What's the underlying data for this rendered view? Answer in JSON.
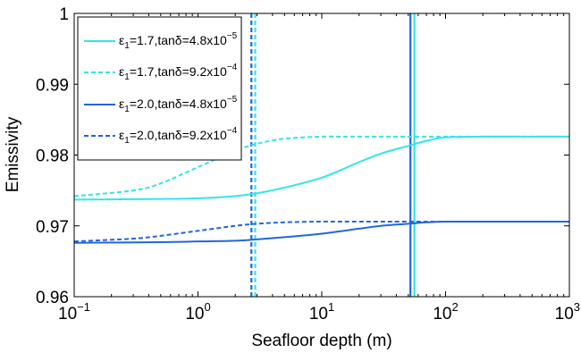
{
  "chart_data": {
    "type": "line",
    "xlabel": "Seafloor depth (m)",
    "ylabel": "Emissivity",
    "xscale": "log",
    "xlim": [
      0.1,
      1000
    ],
    "ylim": [
      0.96,
      1.0
    ],
    "x_ticks": [
      {
        "value": 0.1,
        "base": "10",
        "exp": "−1"
      },
      {
        "value": 1,
        "base": "10",
        "exp": "0"
      },
      {
        "value": 10,
        "base": "10",
        "exp": "1"
      },
      {
        "value": 100,
        "base": "10",
        "exp": "2"
      },
      {
        "value": 1000,
        "base": "10",
        "exp": "3"
      }
    ],
    "y_ticks": [
      {
        "value": 0.96,
        "label": "0.96"
      },
      {
        "value": 0.97,
        "label": "0.97"
      },
      {
        "value": 0.98,
        "label": "0.98"
      },
      {
        "value": 0.99,
        "label": "0.99"
      },
      {
        "value": 1.0,
        "label": "1"
      }
    ],
    "grid": false,
    "legend_position": "top-left",
    "series": [
      {
        "name": "ε1=1.7,tanδ=4.8x10-5",
        "legend": {
          "pre": "ε",
          "sub": "1",
          "mid": "=1.7,tanδ=4.8x10",
          "sup": "−5"
        },
        "color": "#33e6e6",
        "dash": "solid",
        "x": [
          0.1,
          0.5,
          1,
          2,
          3,
          5,
          10,
          20,
          30,
          50,
          70,
          100,
          200,
          500,
          1000
        ],
        "y": [
          0.9737,
          0.9738,
          0.9739,
          0.9742,
          0.9746,
          0.9754,
          0.9768,
          0.979,
          0.9802,
          0.9813,
          0.982,
          0.9825,
          0.9826,
          0.9826,
          0.9826
        ]
      },
      {
        "name": "ε1=1.7,tanδ=9.2x10-4",
        "legend": {
          "pre": "ε",
          "sub": "1",
          "mid": "=1.7,tanδ=9.2x10",
          "sup": "−4"
        },
        "color": "#33e6e6",
        "dash": "dashed",
        "x": [
          0.1,
          0.3,
          0.5,
          1,
          2,
          3,
          5,
          10,
          20,
          1000
        ],
        "y": [
          0.9742,
          0.975,
          0.976,
          0.9783,
          0.9806,
          0.9816,
          0.9823,
          0.9826,
          0.9826,
          0.9826
        ]
      },
      {
        "name": "ε1=2.0,tanδ=4.8x10-5",
        "legend": {
          "pre": "ε",
          "sub": "1",
          "mid": "=2.0,tanδ=4.8x10",
          "sup": "−5"
        },
        "color": "#2266dd",
        "dash": "solid",
        "x": [
          0.1,
          0.5,
          1,
          2,
          3,
          5,
          10,
          20,
          30,
          50,
          70,
          100,
          200,
          500,
          1000
        ],
        "y": [
          0.9676,
          0.9677,
          0.9678,
          0.9679,
          0.9681,
          0.9684,
          0.9689,
          0.9696,
          0.97,
          0.9703,
          0.9705,
          0.9706,
          0.9706,
          0.9706,
          0.9706
        ]
      },
      {
        "name": "ε1=2.0,tanδ=9.2x10-4",
        "legend": {
          "pre": "ε",
          "sub": "1",
          "mid": "=2.0,tanδ=9.2x10",
          "sup": "−4"
        },
        "color": "#2266dd",
        "dash": "dashed",
        "x": [
          0.1,
          0.3,
          0.5,
          1,
          2,
          3,
          5,
          10,
          20,
          1000
        ],
        "y": [
          0.9678,
          0.9682,
          0.9686,
          0.9693,
          0.97,
          0.9703,
          0.9705,
          0.9706,
          0.9706,
          0.9706
        ]
      }
    ],
    "vertical_lines": [
      {
        "x": 2.7,
        "color": "#2266dd",
        "dash": "dashed"
      },
      {
        "x": 2.9,
        "color": "#33e6e6",
        "dash": "dashed"
      },
      {
        "x": 52,
        "color": "#2266dd",
        "dash": "solid"
      },
      {
        "x": 56,
        "color": "#33e6e6",
        "dash": "solid"
      }
    ]
  }
}
